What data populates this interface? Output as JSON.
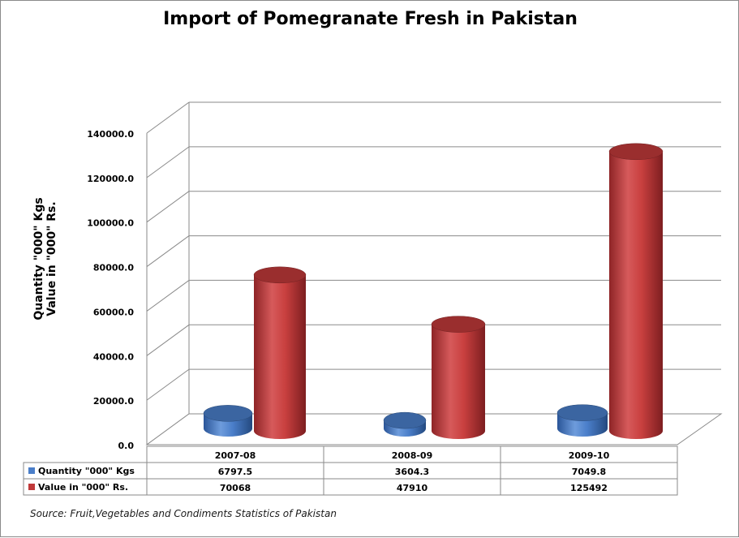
{
  "chart_data": {
    "type": "bar",
    "title": "Import of Pomegranate Fresh in Pakistan",
    "ylabel_lines": [
      "Quantity \"000\" Kgs",
      "Value in \"000\" Rs."
    ],
    "categories": [
      "2007-08",
      "2008-09",
      "2009-10"
    ],
    "series": [
      {
        "name": "Quantity \"000\" Kgs",
        "values": [
          6797.5,
          3604.3,
          7049.8
        ],
        "display": [
          "6797.5",
          "3604.3",
          "7049.8"
        ],
        "color": "#4a7ec9"
      },
      {
        "name": "Value in \"000\" Rs.",
        "values": [
          70068,
          47910,
          125492
        ],
        "display": [
          "70068",
          "47910",
          "125492"
        ],
        "color": "#c0393a"
      }
    ],
    "ylim": [
      0,
      140000
    ],
    "yticks": [
      "0.0",
      "20000.0",
      "40000.0",
      "60000.0",
      "80000.0",
      "100000.0",
      "120000.0",
      "140000.0"
    ],
    "grid": true,
    "legend": "data-table",
    "style": "3d-cylinder"
  },
  "source": "Source: Fruit,Vegetables and Condiments Statistics of Pakistan"
}
